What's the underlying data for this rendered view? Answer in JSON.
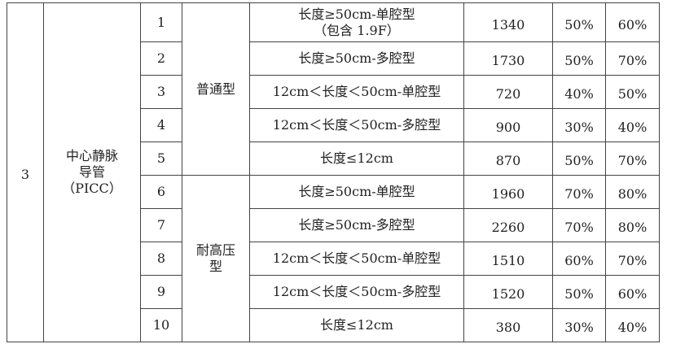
{
  "group_no": "3",
  "category": "中心静脉导管（PICC）",
  "category_lines": [
    "中心静脉",
    "导管",
    "（PICC）"
  ],
  "subtypes": [
    {
      "label": "普通型",
      "lines": [
        "普通型"
      ]
    },
    {
      "label": "耐高压型",
      "lines": [
        "耐高压",
        "型"
      ]
    }
  ],
  "rows": [
    {
      "no": "1",
      "desc": "长度≥50cm-单腔型",
      "desc2": "（包含 1.9F）",
      "price": "1340",
      "p1": "50%",
      "p2": "60%"
    },
    {
      "no": "2",
      "desc": "长度≥50cm-多腔型",
      "price": "1730",
      "p1": "50%",
      "p2": "70%"
    },
    {
      "no": "3",
      "desc": "12cm＜长度＜50cm-单腔型",
      "price": "720",
      "p1": "40%",
      "p2": "50%"
    },
    {
      "no": "4",
      "desc": "12cm＜长度＜50cm-多腔型",
      "price": "900",
      "p1": "30%",
      "p2": "40%"
    },
    {
      "no": "5",
      "desc": "长度≤12cm",
      "price": "870",
      "p1": "50%",
      "p2": "70%"
    },
    {
      "no": "6",
      "desc": "长度≥50cm-单腔型",
      "price": "1960",
      "p1": "70%",
      "p2": "80%"
    },
    {
      "no": "7",
      "desc": "长度≥50cm-多腔型",
      "price": "2260",
      "p1": "70%",
      "p2": "80%"
    },
    {
      "no": "8",
      "desc": "12cm＜长度＜50cm-单腔型",
      "price": "1510",
      "p1": "60%",
      "p2": "70%"
    },
    {
      "no": "9",
      "desc": "12cm＜长度＜50cm-多腔型",
      "price": "1520",
      "p1": "50%",
      "p2": "60%"
    },
    {
      "no": "10",
      "desc": "长度≤12cm",
      "price": "380",
      "p1": "30%",
      "p2": "40%"
    }
  ]
}
